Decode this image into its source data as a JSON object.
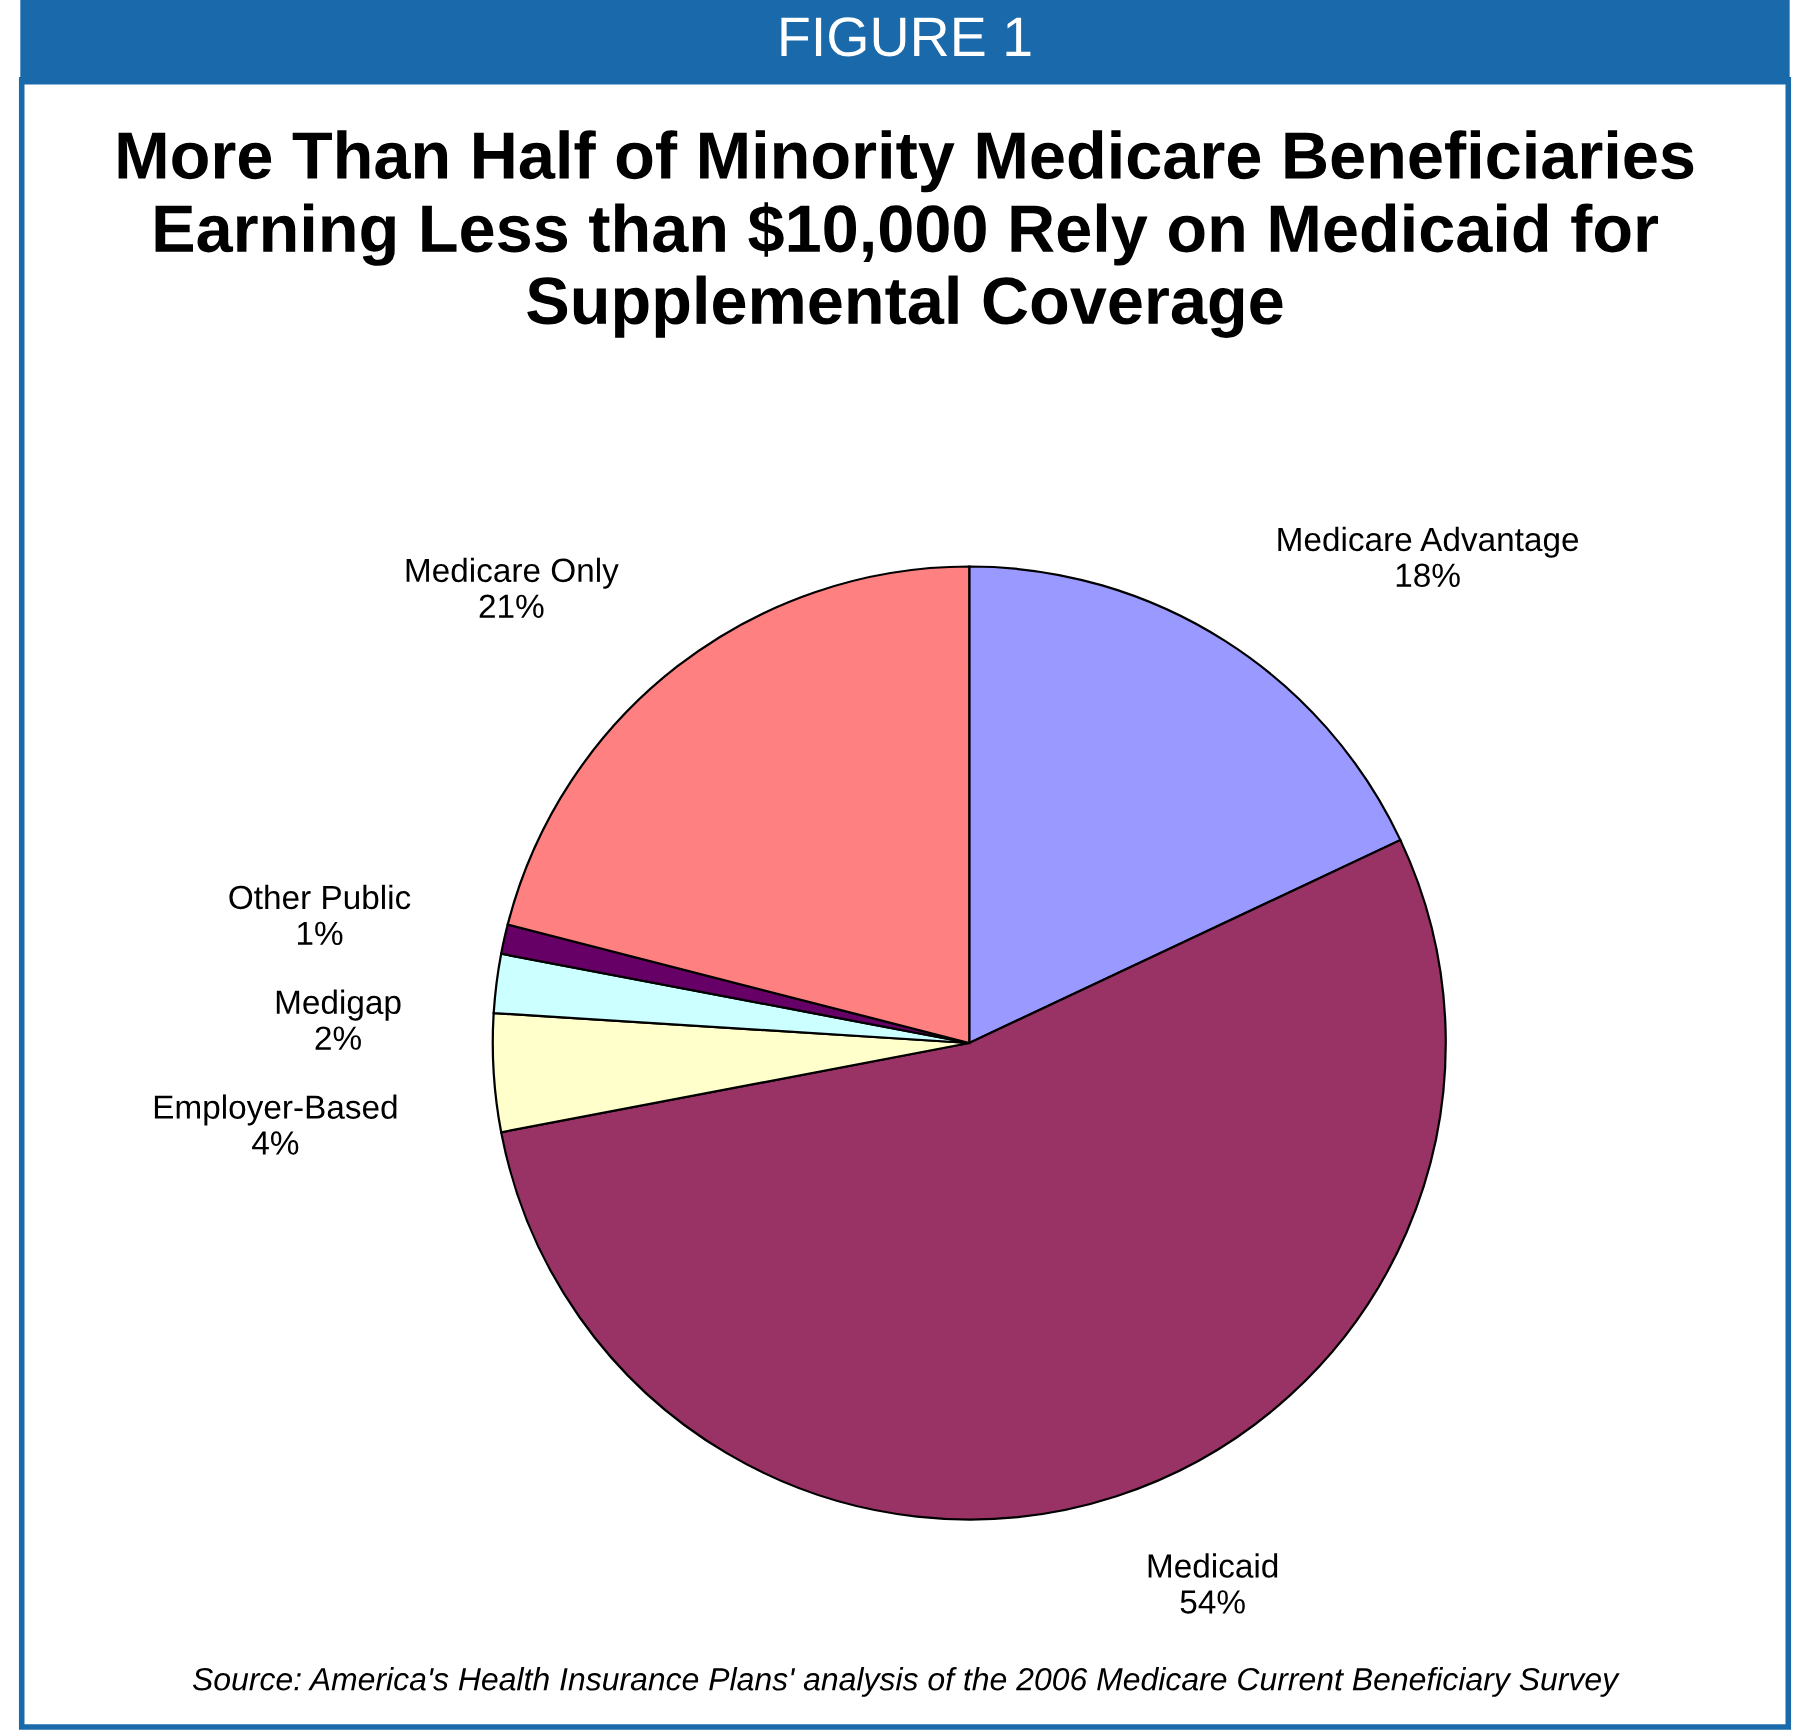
{
  "chart_data": {
    "type": "pie",
    "title": "More Than Half of Minority Medicare Beneficiaries Earning Less than $10,000 Rely on Medicaid for Supplemental Coverage",
    "categories": [
      "Medicare Advantage",
      "Medicaid",
      "Employer-Based",
      "Medigap",
      "Other Public",
      "Medicare Only"
    ],
    "values": [
      18,
      54,
      4,
      2,
      1,
      21
    ],
    "value_labels": [
      "18%",
      "54%",
      "4%",
      "2%",
      "1%",
      "21%"
    ],
    "colors": [
      "#9999ff",
      "#993366",
      "#ffffcc",
      "#ccffff",
      "#660066",
      "#ff8080"
    ],
    "annotations": [
      "FIGURE 1",
      "Source: America's Health Insurance Plans' analysis of the 2006 Medicare Current Beneficiary Survey"
    ]
  }
}
